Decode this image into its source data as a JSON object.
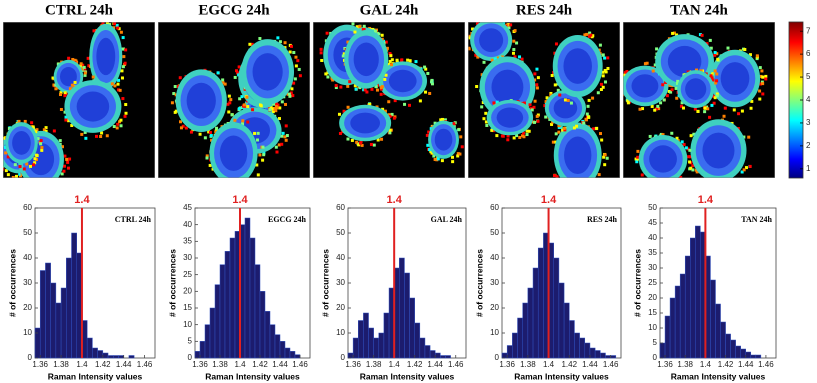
{
  "panels": [
    {
      "title": "CTRL 24h"
    },
    {
      "title": "EGCG 24h"
    },
    {
      "title": "GAL 24h"
    },
    {
      "title": "RES 24h"
    },
    {
      "title": "TAN 24h"
    }
  ],
  "chart_data": [
    {
      "type": "histogram",
      "annotation": "CTRL 24h",
      "x_label": "Raman Intensity values",
      "y_label": "# of occurrences",
      "vline": 1.4,
      "color": "#1c1c6e",
      "bins": [
        1.355,
        1.36,
        1.365,
        1.37,
        1.375,
        1.38,
        1.385,
        1.39,
        1.395,
        1.4,
        1.405,
        1.41,
        1.415,
        1.42,
        1.425,
        1.43,
        1.435,
        1.44,
        1.445,
        1.45,
        1.455,
        1.46,
        1.465,
        1.47
      ],
      "values": [
        12,
        35,
        38,
        30,
        22,
        28,
        40,
        50,
        42,
        15,
        8,
        4,
        3,
        2,
        1,
        1,
        1,
        0,
        1,
        0,
        0,
        0,
        0
      ],
      "xlim": [
        1.355,
        1.47
      ],
      "xticks": [
        1.36,
        1.38,
        1.4,
        1.42,
        1.44,
        1.46
      ],
      "ylim": [
        0,
        60
      ],
      "yticks": [
        0,
        10,
        20,
        30,
        40,
        50,
        60
      ]
    },
    {
      "type": "histogram",
      "annotation": "EGCG 24h",
      "x_label": "Raman Intensity values",
      "y_label": "# of occurrences",
      "vline": 1.4,
      "color": "#1c1c6e",
      "bins": [
        1.355,
        1.36,
        1.365,
        1.37,
        1.375,
        1.38,
        1.385,
        1.39,
        1.395,
        1.4,
        1.405,
        1.41,
        1.415,
        1.42,
        1.425,
        1.43,
        1.435,
        1.44,
        1.445,
        1.45,
        1.455,
        1.46,
        1.465,
        1.47
      ],
      "values": [
        2,
        5,
        10,
        15,
        22,
        28,
        32,
        36,
        38,
        40,
        42,
        36,
        28,
        20,
        14,
        10,
        7,
        5,
        3,
        2,
        1,
        0,
        0
      ],
      "xlim": [
        1.355,
        1.47
      ],
      "xticks": [
        1.36,
        1.38,
        1.4,
        1.42,
        1.44,
        1.46
      ],
      "ylim": [
        0,
        45
      ],
      "yticks": [
        0,
        5,
        10,
        15,
        20,
        25,
        30,
        35,
        40,
        45
      ]
    },
    {
      "type": "histogram",
      "annotation": "GAL 24h",
      "x_label": "Raman Intensity values",
      "y_label": "# of occurrences",
      "vline": 1.4,
      "color": "#1c1c6e",
      "bins": [
        1.355,
        1.36,
        1.365,
        1.37,
        1.375,
        1.38,
        1.385,
        1.39,
        1.395,
        1.4,
        1.405,
        1.41,
        1.415,
        1.42,
        1.425,
        1.43,
        1.435,
        1.44,
        1.445,
        1.45,
        1.455,
        1.46,
        1.465,
        1.47
      ],
      "values": [
        2,
        8,
        15,
        18,
        12,
        8,
        10,
        18,
        28,
        36,
        40,
        34,
        24,
        14,
        8,
        5,
        3,
        2,
        1,
        1,
        0,
        0,
        0
      ],
      "xlim": [
        1.355,
        1.47
      ],
      "xticks": [
        1.36,
        1.38,
        1.4,
        1.42,
        1.44,
        1.46
      ],
      "ylim": [
        0,
        60
      ],
      "yticks": [
        0,
        10,
        20,
        30,
        40,
        50,
        60
      ]
    },
    {
      "type": "histogram",
      "annotation": "RES 24h",
      "x_label": "Raman Intensity values",
      "y_label": "# of occurrences",
      "vline": 1.4,
      "color": "#1c1c6e",
      "bins": [
        1.355,
        1.36,
        1.365,
        1.37,
        1.375,
        1.38,
        1.385,
        1.39,
        1.395,
        1.4,
        1.405,
        1.41,
        1.415,
        1.42,
        1.425,
        1.43,
        1.435,
        1.44,
        1.445,
        1.45,
        1.455,
        1.46,
        1.465,
        1.47
      ],
      "values": [
        2,
        5,
        10,
        16,
        22,
        28,
        36,
        44,
        50,
        46,
        40,
        30,
        22,
        15,
        10,
        8,
        6,
        4,
        3,
        2,
        1,
        1,
        0
      ],
      "xlim": [
        1.355,
        1.47
      ],
      "xticks": [
        1.36,
        1.38,
        1.4,
        1.42,
        1.44,
        1.46
      ],
      "ylim": [
        0,
        60
      ],
      "yticks": [
        0,
        10,
        20,
        30,
        40,
        50,
        60
      ]
    },
    {
      "type": "histogram",
      "annotation": "TAN 24h",
      "x_label": "Raman Intensity values",
      "y_label": "# of occurrences",
      "vline": 1.4,
      "color": "#1c1c6e",
      "bins": [
        1.355,
        1.36,
        1.365,
        1.37,
        1.375,
        1.38,
        1.385,
        1.39,
        1.395,
        1.4,
        1.405,
        1.41,
        1.415,
        1.42,
        1.425,
        1.43,
        1.435,
        1.44,
        1.445,
        1.45,
        1.455,
        1.46,
        1.465,
        1.47
      ],
      "values": [
        5,
        14,
        20,
        24,
        28,
        34,
        40,
        44,
        42,
        34,
        26,
        18,
        12,
        8,
        6,
        4,
        3,
        2,
        1,
        1,
        0,
        0,
        0
      ],
      "xlim": [
        1.355,
        1.47
      ],
      "xticks": [
        1.36,
        1.38,
        1.4,
        1.42,
        1.44,
        1.46
      ],
      "ylim": [
        0,
        50
      ],
      "yticks": [
        0,
        5,
        10,
        15,
        20,
        25,
        30,
        35,
        40,
        45,
        50
      ]
    },
    {
      "type": "colorbar",
      "ylim": [
        0.6,
        7.4
      ],
      "yticks": [
        1,
        2,
        3,
        4,
        5,
        6,
        7
      ]
    }
  ]
}
